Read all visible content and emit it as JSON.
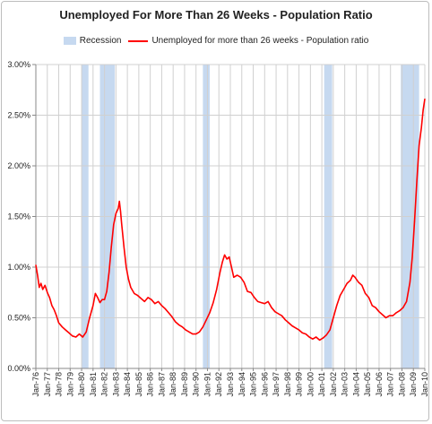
{
  "chart_data": {
    "type": "line",
    "title": "Unemployed For More Than 26 Weeks - Population Ratio",
    "xlabel": "",
    "ylabel": "",
    "xlim": [
      1976.0,
      2010.0
    ],
    "ylim": [
      0,
      3.0
    ],
    "grid": true,
    "legend_position": "top",
    "y_ticks": [
      {
        "value": 0.0,
        "label": "0.00%"
      },
      {
        "value": 0.5,
        "label": "0.50%"
      },
      {
        "value": 1.0,
        "label": "1.00%"
      },
      {
        "value": 1.5,
        "label": "1.50%"
      },
      {
        "value": 2.0,
        "label": "2.00%"
      },
      {
        "value": 2.5,
        "label": "2.50%"
      },
      {
        "value": 3.0,
        "label": "3.00%"
      }
    ],
    "x_ticks": [
      {
        "value": 1976,
        "label": "Jan-76"
      },
      {
        "value": 1977,
        "label": "Jan-77"
      },
      {
        "value": 1978,
        "label": "Jan-78"
      },
      {
        "value": 1979,
        "label": "Jan-79"
      },
      {
        "value": 1980,
        "label": "Jan-80"
      },
      {
        "value": 1981,
        "label": "Jan-81"
      },
      {
        "value": 1982,
        "label": "Jan-82"
      },
      {
        "value": 1983,
        "label": "Jan-83"
      },
      {
        "value": 1984,
        "label": "Jan-84"
      },
      {
        "value": 1985,
        "label": "Jan-85"
      },
      {
        "value": 1986,
        "label": "Jan-86"
      },
      {
        "value": 1987,
        "label": "Jan-87"
      },
      {
        "value": 1988,
        "label": "Jan-88"
      },
      {
        "value": 1989,
        "label": "Jan-89"
      },
      {
        "value": 1990,
        "label": "Jan-90"
      },
      {
        "value": 1991,
        "label": "Jan-91"
      },
      {
        "value": 1992,
        "label": "Jan-92"
      },
      {
        "value": 1993,
        "label": "Jan-93"
      },
      {
        "value": 1994,
        "label": "Jan-94"
      },
      {
        "value": 1995,
        "label": "Jan-95"
      },
      {
        "value": 1996,
        "label": "Jan-96"
      },
      {
        "value": 1997,
        "label": "Jan-97"
      },
      {
        "value": 1998,
        "label": "Jan-98"
      },
      {
        "value": 1999,
        "label": "Jan-99"
      },
      {
        "value": 2000,
        "label": "Jan-00"
      },
      {
        "value": 2001,
        "label": "Jan-01"
      },
      {
        "value": 2002,
        "label": "Jan-02"
      },
      {
        "value": 2003,
        "label": "Jan-03"
      },
      {
        "value": 2004,
        "label": "Jan-04"
      },
      {
        "value": 2005,
        "label": "Jan-05"
      },
      {
        "value": 2006,
        "label": "Jan-06"
      },
      {
        "value": 2007,
        "label": "Jan-07"
      },
      {
        "value": 2008,
        "label": "Jan-08"
      },
      {
        "value": 2009,
        "label": "Jan-09"
      },
      {
        "value": 2010,
        "label": "Jan-10"
      }
    ],
    "recessions": {
      "name": "Recession",
      "color": "#c6d9f0",
      "periods": [
        [
          1980.0,
          1980.6
        ],
        [
          1981.6,
          1982.9
        ],
        [
          1990.6,
          1991.2
        ],
        [
          2001.2,
          2001.9
        ],
        [
          2007.9,
          2009.5
        ]
      ]
    },
    "series": [
      {
        "name": "Unemployed for more than 26 weeks - Population ratio",
        "color": "#ff0000",
        "x": [
          1976.0,
          1976.15,
          1976.3,
          1976.45,
          1976.6,
          1976.8,
          1977.0,
          1977.2,
          1977.4,
          1977.6,
          1977.8,
          1978.0,
          1978.3,
          1978.6,
          1978.9,
          1979.2,
          1979.5,
          1979.8,
          1980.1,
          1980.4,
          1980.7,
          1981.0,
          1981.2,
          1981.4,
          1981.6,
          1981.8,
          1982.0,
          1982.2,
          1982.4,
          1982.6,
          1982.8,
          1983.0,
          1983.2,
          1983.3,
          1983.4,
          1983.5,
          1983.7,
          1983.9,
          1984.1,
          1984.3,
          1984.6,
          1984.9,
          1985.2,
          1985.5,
          1985.8,
          1986.1,
          1986.4,
          1986.7,
          1987.0,
          1987.3,
          1987.6,
          1987.9,
          1988.2,
          1988.5,
          1988.8,
          1989.1,
          1989.4,
          1989.7,
          1990.0,
          1990.3,
          1990.6,
          1990.9,
          1991.2,
          1991.5,
          1991.8,
          1992.1,
          1992.3,
          1992.5,
          1992.7,
          1992.9,
          1993.1,
          1993.3,
          1993.6,
          1993.9,
          1994.2,
          1994.5,
          1994.8,
          1995.1,
          1995.4,
          1995.7,
          1996.0,
          1996.3,
          1996.6,
          1996.9,
          1997.2,
          1997.5,
          1997.8,
          1998.1,
          1998.4,
          1998.7,
          1999.0,
          1999.3,
          1999.6,
          1999.9,
          2000.2,
          2000.5,
          2000.8,
          2001.1,
          2001.4,
          2001.7,
          2002.0,
          2002.3,
          2002.6,
          2002.9,
          2003.2,
          2003.5,
          2003.7,
          2003.9,
          2004.2,
          2004.5,
          2004.8,
          2005.1,
          2005.4,
          2005.7,
          2006.0,
          2006.3,
          2006.6,
          2006.9,
          2007.2,
          2007.5,
          2007.8,
          2008.1,
          2008.4,
          2008.7,
          2008.9,
          2009.1,
          2009.3,
          2009.5,
          2009.7,
          2009.85,
          2010.0
        ],
        "y": [
          1.02,
          0.92,
          0.8,
          0.84,
          0.78,
          0.82,
          0.75,
          0.7,
          0.62,
          0.58,
          0.52,
          0.45,
          0.41,
          0.38,
          0.35,
          0.32,
          0.31,
          0.34,
          0.31,
          0.36,
          0.5,
          0.62,
          0.74,
          0.7,
          0.65,
          0.68,
          0.68,
          0.76,
          0.95,
          1.2,
          1.42,
          1.53,
          1.58,
          1.65,
          1.55,
          1.43,
          1.2,
          1.0,
          0.88,
          0.8,
          0.74,
          0.72,
          0.69,
          0.66,
          0.7,
          0.68,
          0.64,
          0.66,
          0.62,
          0.59,
          0.55,
          0.51,
          0.46,
          0.43,
          0.41,
          0.38,
          0.36,
          0.34,
          0.34,
          0.36,
          0.41,
          0.48,
          0.55,
          0.65,
          0.78,
          0.95,
          1.05,
          1.12,
          1.08,
          1.1,
          1.0,
          0.9,
          0.92,
          0.9,
          0.85,
          0.76,
          0.75,
          0.7,
          0.66,
          0.65,
          0.64,
          0.66,
          0.6,
          0.56,
          0.54,
          0.52,
          0.48,
          0.45,
          0.42,
          0.4,
          0.38,
          0.35,
          0.34,
          0.31,
          0.29,
          0.31,
          0.28,
          0.3,
          0.33,
          0.38,
          0.5,
          0.62,
          0.72,
          0.78,
          0.84,
          0.87,
          0.92,
          0.9,
          0.85,
          0.82,
          0.74,
          0.7,
          0.62,
          0.6,
          0.56,
          0.53,
          0.5,
          0.52,
          0.52,
          0.55,
          0.57,
          0.6,
          0.66,
          0.85,
          1.1,
          1.45,
          1.85,
          2.2,
          2.38,
          2.55,
          2.66
        ]
      }
    ]
  }
}
